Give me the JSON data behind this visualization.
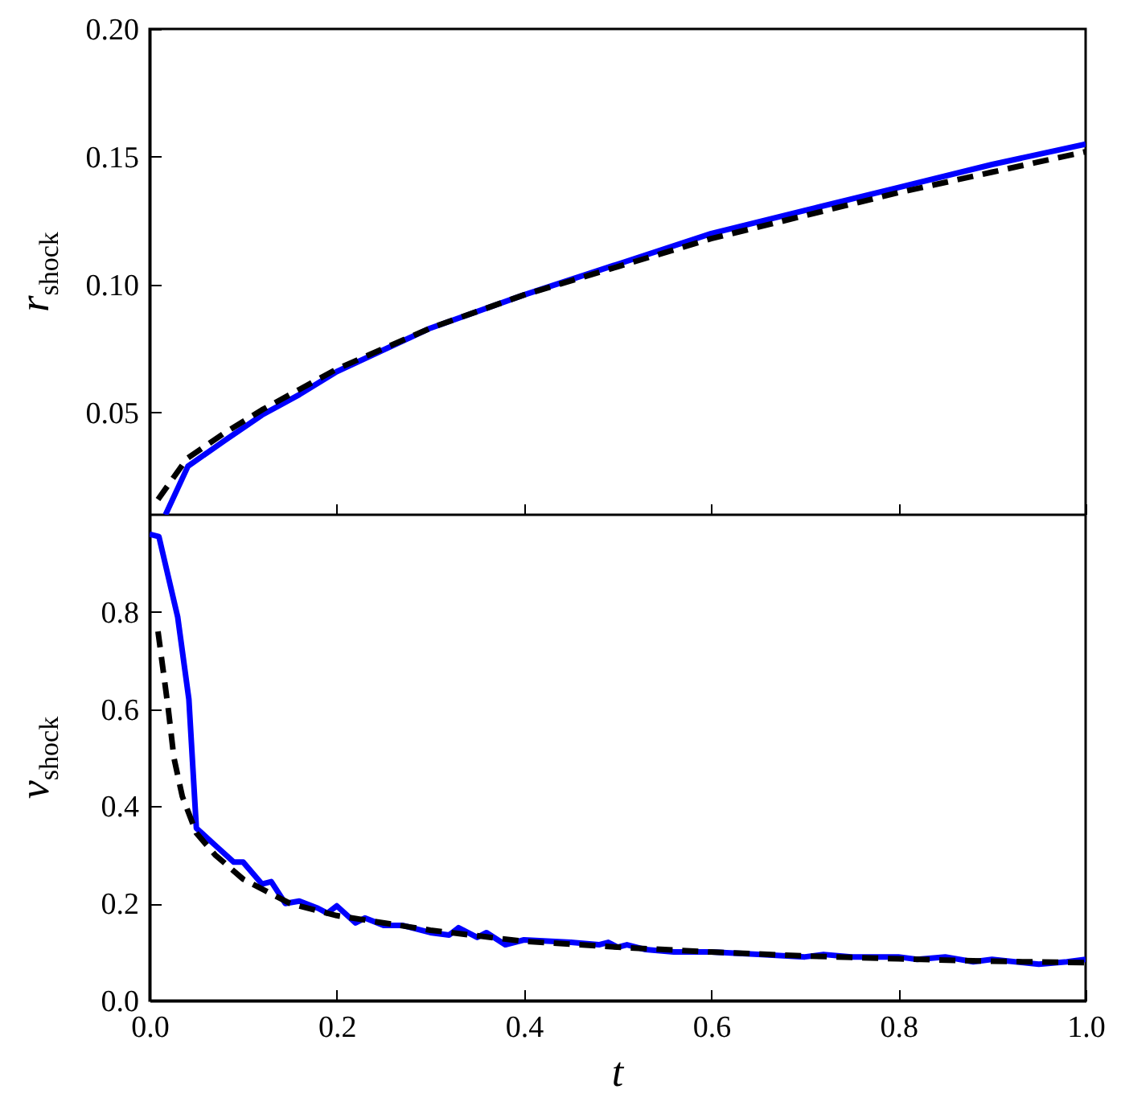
{
  "chart_data": [
    {
      "type": "line",
      "ylabel": "r$_{shock}$",
      "xlim": [
        0,
        1
      ],
      "xticks": [
        0,
        0.2,
        0.4,
        0.6,
        0.8,
        1.0
      ],
      "ylim": [
        0.01,
        0.2
      ],
      "yticks": [
        0.05,
        {
          "value": 0.1,
          "label": "0.10"
        },
        0.15,
        {
          "value": 0.2,
          "label": "0.20"
        }
      ],
      "tick_labels": "y",
      "grid": false,
      "series": [
        {
          "color": "#0000ff",
          "line_style": "solid",
          "x": [
            0.017,
            0.041,
            0.08,
            0.12,
            0.16,
            0.2,
            0.3,
            0.4,
            0.5,
            0.6,
            0.7,
            0.8,
            0.9,
            1.0
          ],
          "values": [
            0.01,
            0.029,
            0.039,
            0.049,
            0.057,
            0.066,
            0.083,
            0.096,
            0.108,
            0.12,
            0.129,
            0.138,
            0.147,
            0.155
          ]
        },
        {
          "color": "#000000",
          "line_style": "dashed",
          "x": [
            0.009,
            0.04,
            0.08,
            0.12,
            0.16,
            0.2,
            0.3,
            0.4,
            0.5,
            0.6,
            0.7,
            0.8,
            0.9,
            1.0
          ],
          "values": [
            0.016,
            0.032,
            0.042,
            0.051,
            0.059,
            0.067,
            0.083,
            0.096,
            0.107,
            0.118,
            0.127,
            0.136,
            0.144,
            0.152
          ]
        }
      ]
    },
    {
      "type": "line",
      "xlabel": "t",
      "ylabel": "v$_{shock}$",
      "xlim": [
        0,
        1
      ],
      "xticks": [
        {
          "value": 0,
          "label": "0.0"
        },
        0.2,
        0.4,
        0.6,
        0.8,
        {
          "value": 1.0,
          "label": "1.0"
        }
      ],
      "ylim": [
        0,
        1
      ],
      "yticks": [
        {
          "value": 0,
          "label": "0.0"
        },
        0.2,
        0.4,
        0.6,
        0.8
      ],
      "grid": false,
      "series": [
        {
          "color": "#0000ff",
          "line_style": "solid",
          "x": [
            0,
            0.01,
            0.03,
            0.042,
            0.05,
            0.07,
            0.09,
            0.1,
            0.12,
            0.13,
            0.145,
            0.16,
            0.18,
            0.19,
            0.2,
            0.22,
            0.23,
            0.25,
            0.27,
            0.3,
            0.32,
            0.33,
            0.35,
            0.36,
            0.38,
            0.4,
            0.45,
            0.48,
            0.49,
            0.5,
            0.51,
            0.53,
            0.56,
            0.6,
            0.65,
            0.7,
            0.72,
            0.75,
            0.8,
            0.82,
            0.85,
            0.88,
            0.9,
            0.95,
            0.98,
            1.0
          ],
          "values": [
            0.96,
            0.955,
            0.79,
            0.62,
            0.355,
            0.32,
            0.285,
            0.285,
            0.24,
            0.245,
            0.2,
            0.205,
            0.19,
            0.18,
            0.195,
            0.16,
            0.17,
            0.155,
            0.155,
            0.14,
            0.135,
            0.15,
            0.13,
            0.14,
            0.115,
            0.125,
            0.12,
            0.115,
            0.12,
            0.11,
            0.115,
            0.105,
            0.1,
            0.1,
            0.095,
            0.09,
            0.095,
            0.09,
            0.09,
            0.085,
            0.09,
            0.08,
            0.085,
            0.075,
            0.08,
            0.085
          ]
        },
        {
          "color": "#000000",
          "line_style": "dashed",
          "x": [
            0.009,
            0.02,
            0.026,
            0.035,
            0.05,
            0.07,
            0.1,
            0.15,
            0.2,
            0.3,
            0.4,
            0.5,
            0.6,
            0.7,
            0.8,
            0.9,
            1.0
          ],
          "values": [
            0.76,
            0.6,
            0.5,
            0.42,
            0.345,
            0.3,
            0.25,
            0.2,
            0.175,
            0.145,
            0.122,
            0.11,
            0.1,
            0.092,
            0.086,
            0.081,
            0.078
          ]
        }
      ]
    }
  ]
}
